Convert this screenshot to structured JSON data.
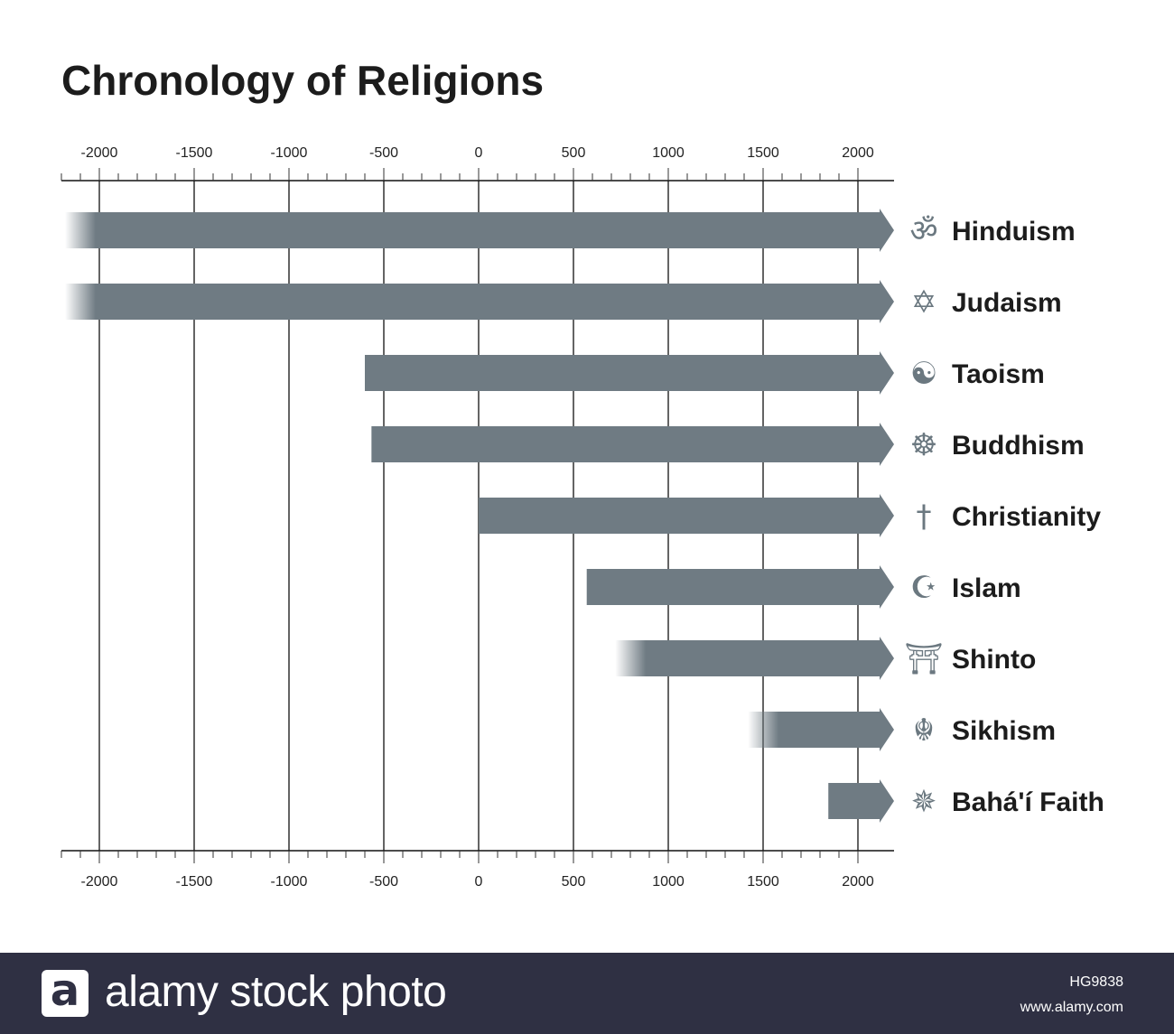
{
  "chart_data": {
    "type": "bar",
    "title": "Chronology of Religions",
    "xlim": [
      -2200,
      2000
    ],
    "x_ticks": [
      -2000,
      -1500,
      -1000,
      -500,
      0,
      500,
      1000,
      1500,
      2000
    ],
    "x_tick_labels": [
      "-2000",
      "-1500",
      "-1000",
      "-500",
      "0",
      "500",
      "1000",
      "1500",
      "2000"
    ],
    "minor_tick_step": 100,
    "grid": true,
    "bar_color": "#6f7b83",
    "icon_color": "#6b7880",
    "series": [
      {
        "name": "Hinduism",
        "icon": "om-icon",
        "glyph": "ॐ",
        "start": -2200,
        "end": 2000,
        "fade_start": true
      },
      {
        "name": "Judaism",
        "icon": "star-of-david-icon",
        "glyph": "✡",
        "start": -2200,
        "end": 2000,
        "fade_start": true
      },
      {
        "name": "Taoism",
        "icon": "yin-yang-icon",
        "glyph": "☯",
        "start": -600,
        "end": 2000,
        "fade_start": false
      },
      {
        "name": "Buddhism",
        "icon": "dharma-wheel-icon",
        "glyph": "☸",
        "start": -565,
        "end": 2000,
        "fade_start": false
      },
      {
        "name": "Christianity",
        "icon": "cross-icon",
        "glyph": "†",
        "start": 0,
        "end": 2000,
        "fade_start": false
      },
      {
        "name": "Islam",
        "icon": "crescent-star-icon",
        "glyph": "☪",
        "start": 570,
        "end": 2000,
        "fade_start": false
      },
      {
        "name": "Shinto",
        "icon": "torii-icon",
        "glyph": "⛩",
        "start": 720,
        "end": 2000,
        "fade_start": true
      },
      {
        "name": "Sikhism",
        "icon": "khanda-icon",
        "glyph": "☬",
        "start": 1420,
        "end": 2000,
        "fade_start": true
      },
      {
        "name": "Bahá'í Faith",
        "icon": "nine-star-icon",
        "glyph": "✵",
        "start": 1844,
        "end": 2000,
        "fade_start": false
      }
    ]
  },
  "footer": {
    "logo_letter": "a",
    "brand": "alamy stock photo",
    "image_code": "HG9838",
    "url": "www.alamy.com"
  }
}
